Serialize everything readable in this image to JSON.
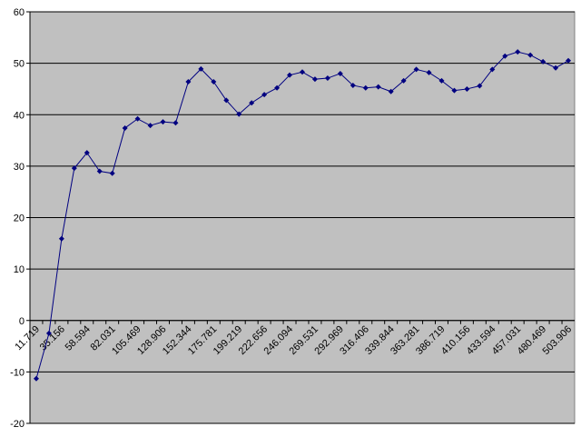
{
  "chart_data": {
    "type": "line",
    "categories": [
      "11.719",
      null,
      "35.156",
      null,
      "58.594",
      null,
      "82.031",
      null,
      "105.469",
      null,
      "128.906",
      null,
      "152.344",
      null,
      "175.781",
      null,
      "199.219",
      null,
      "222.656",
      null,
      "246.094",
      null,
      "269.531",
      null,
      "292.969",
      null,
      "316.406",
      null,
      "339.844",
      null,
      "363.281",
      null,
      "386.719",
      null,
      "410.156",
      null,
      "433.594",
      null,
      "457.031",
      null,
      "480.469",
      null,
      "503.906"
    ],
    "series": [
      {
        "color": "#000080",
        "values": [
          -11.3,
          -2.5,
          15.9,
          29.6,
          32.6,
          29.0,
          28.6,
          37.4,
          39.2,
          37.9,
          38.6,
          38.4,
          46.4,
          48.9,
          46.4,
          42.8,
          40.1,
          42.3,
          43.9,
          45.2,
          47.7,
          48.3,
          46.9,
          47.1,
          48.0,
          45.7,
          45.2,
          45.4,
          44.5,
          46.6,
          48.8,
          48.2,
          46.6,
          44.7,
          45.0,
          45.6,
          48.8,
          51.4,
          52.2,
          51.6,
          50.3,
          49.1,
          50.5
        ]
      }
    ],
    "ylim": [
      -20,
      60
    ],
    "yticks": [
      -20,
      -10,
      0,
      10,
      20,
      30,
      40,
      50,
      60
    ],
    "grid": true
  }
}
